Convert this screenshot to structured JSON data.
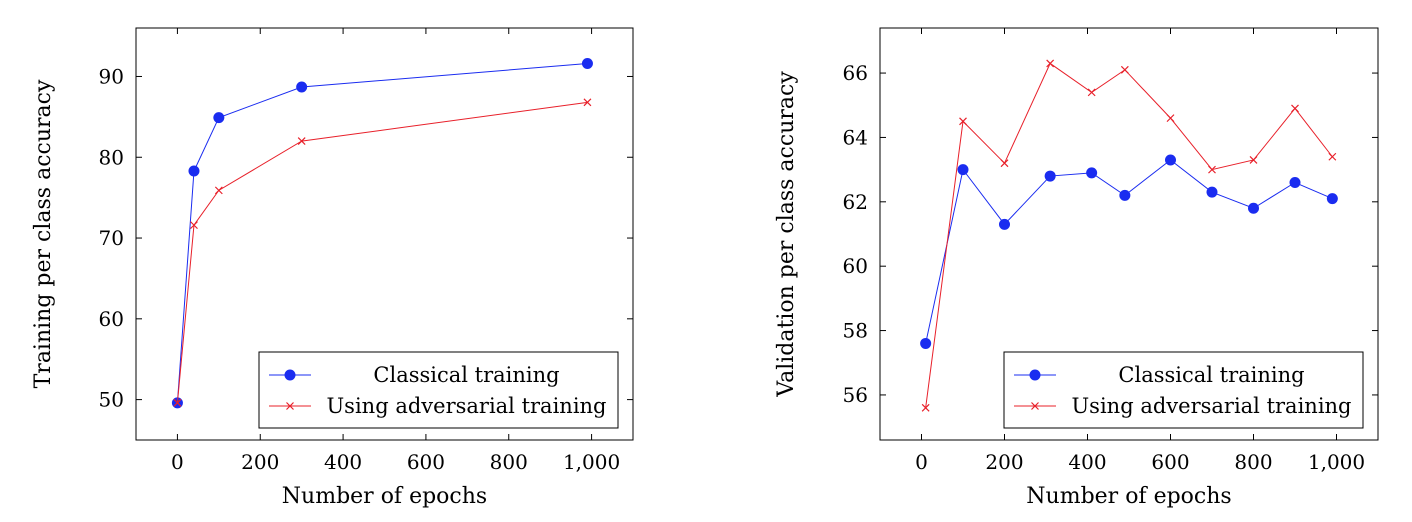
{
  "chart_data": [
    {
      "type": "line",
      "title": "",
      "xlabel": "Number of epochs",
      "ylabel": "Training per class accuracy",
      "xlim": [
        -100,
        1100
      ],
      "ylim": [
        45,
        96
      ],
      "xticks": [
        0,
        200,
        400,
        600,
        800,
        1000
      ],
      "xtick_labels": [
        "0",
        "200",
        "400",
        "600",
        "800",
        "1,000"
      ],
      "yticks": [
        50,
        60,
        70,
        80,
        90
      ],
      "ytick_labels": [
        "50",
        "60",
        "70",
        "80",
        "90"
      ],
      "grid": false,
      "legend_position": "bottom-right",
      "series": [
        {
          "name": "Classical training",
          "color": "#1a2cf0",
          "marker": "circle",
          "x": [
            0,
            40,
            100,
            300,
            990
          ],
          "y": [
            49.6,
            78.3,
            84.9,
            88.7,
            91.6
          ]
        },
        {
          "name": "Using adversarial training",
          "color": "#e8202a",
          "marker": "x",
          "x": [
            0,
            40,
            100,
            300,
            990
          ],
          "y": [
            49.6,
            71.6,
            75.9,
            82.0,
            86.8
          ]
        }
      ]
    },
    {
      "type": "line",
      "title": "",
      "xlabel": "Number of epochs",
      "ylabel": "Validation per class accuracy",
      "xlim": [
        -100,
        1100
      ],
      "ylim": [
        54.6,
        67.4
      ],
      "xticks": [
        0,
        200,
        400,
        600,
        800,
        1000
      ],
      "xtick_labels": [
        "0",
        "200",
        "400",
        "600",
        "800",
        "1,000"
      ],
      "yticks": [
        56,
        58,
        60,
        62,
        64,
        66
      ],
      "ytick_labels": [
        "56",
        "58",
        "60",
        "62",
        "64",
        "66"
      ],
      "grid": false,
      "legend_position": "bottom-right",
      "series": [
        {
          "name": "Classical training",
          "color": "#1a2cf0",
          "marker": "circle",
          "x": [
            10,
            100,
            200,
            310,
            410,
            490,
            600,
            700,
            800,
            900,
            990
          ],
          "y": [
            57.6,
            63.0,
            61.3,
            62.8,
            62.9,
            62.2,
            63.3,
            62.3,
            61.8,
            62.6,
            62.1
          ]
        },
        {
          "name": "Using adversarial training",
          "color": "#e8202a",
          "marker": "x",
          "x": [
            10,
            100,
            200,
            310,
            410,
            490,
            600,
            700,
            800,
            900,
            990
          ],
          "y": [
            55.6,
            64.5,
            63.2,
            66.3,
            65.4,
            66.1,
            64.6,
            63.0,
            63.3,
            64.9,
            63.4
          ]
        }
      ]
    }
  ]
}
